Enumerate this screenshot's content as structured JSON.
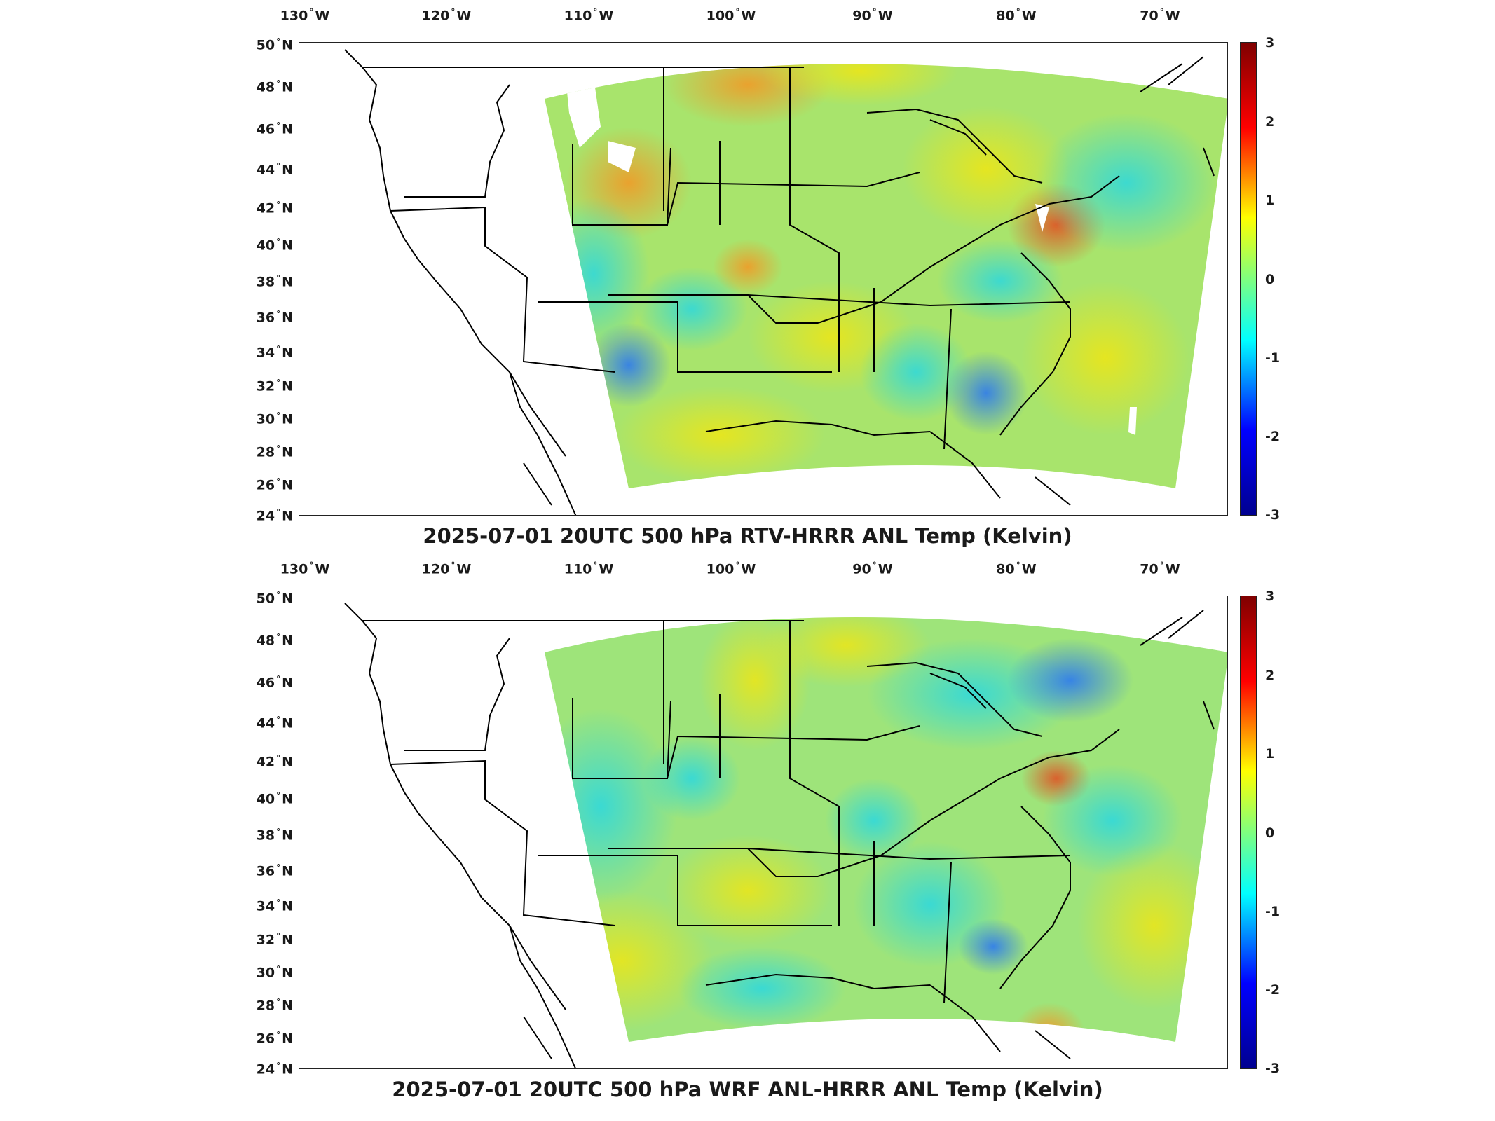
{
  "panels": [
    {
      "title": "2025-07-01 20UTC 500 hPa RTV-HRRR ANL Temp (Kelvin)",
      "lon_labels": [
        "130",
        "120",
        "110",
        "100",
        "90",
        "80",
        "70"
      ],
      "lon_suffix": "W",
      "lat_labels": [
        "50",
        "48",
        "46",
        "44",
        "42",
        "40",
        "38",
        "36",
        "34",
        "32",
        "30",
        "28",
        "26",
        "24"
      ],
      "lat_suffix": "N",
      "colorbar_ticks": [
        "3",
        "2",
        "1",
        "0",
        "-1",
        "-2",
        "-3"
      ],
      "colorbar_range": [
        -3,
        3
      ]
    },
    {
      "title": "2025-07-01 20UTC 500 hPa WRF ANL-HRRR ANL Temp (Kelvin)",
      "lon_labels": [
        "130",
        "120",
        "110",
        "100",
        "90",
        "80",
        "70"
      ],
      "lon_suffix": "W",
      "lat_labels": [
        "50",
        "48",
        "46",
        "44",
        "42",
        "40",
        "38",
        "36",
        "34",
        "32",
        "30",
        "28",
        "26",
        "24"
      ],
      "lat_suffix": "N",
      "colorbar_ticks": [
        "3",
        "2",
        "1",
        "0",
        "-1",
        "-2",
        "-3"
      ],
      "colorbar_range": [
        -3,
        3
      ]
    }
  ],
  "colormap": [
    "#00008f",
    "#0000ff",
    "#00ffff",
    "#7fff7f",
    "#ffff00",
    "#ff0000",
    "#7f0000"
  ],
  "field_colors": {
    "top_base": "#a8e46c",
    "bottom_base": "#9ee47a",
    "map_lines": "#000000"
  }
}
